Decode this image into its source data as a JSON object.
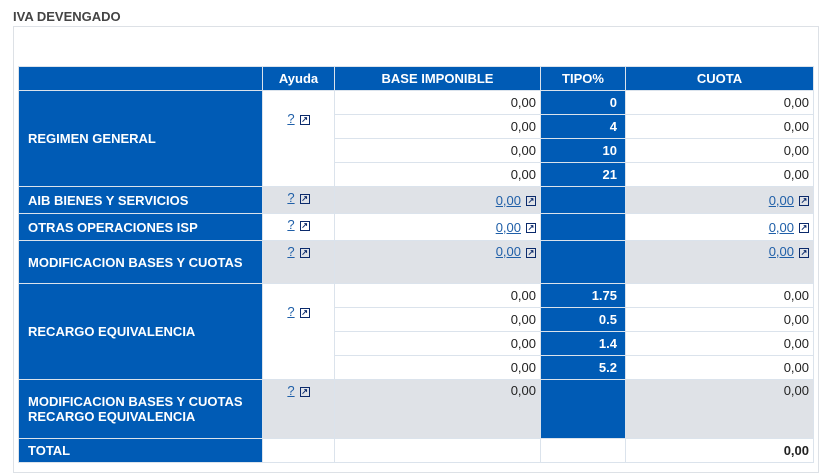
{
  "title": "IVA DEVENGADO",
  "headers": [
    "",
    "Ayuda",
    "BASE IMPONIBLE",
    "TIPO%",
    "CUOTA"
  ],
  "help": "?",
  "regimen": {
    "label": "REGIMEN GENERAL",
    "rows": [
      {
        "base": "0,00",
        "tipo": "0",
        "cuota": "0,00"
      },
      {
        "base": "0,00",
        "tipo": "4",
        "cuota": "0,00"
      },
      {
        "base": "0,00",
        "tipo": "10",
        "cuota": "0,00"
      },
      {
        "base": "0,00",
        "tipo": "21",
        "cuota": "0,00"
      }
    ]
  },
  "aib": {
    "label": "AIB BIENES Y SERVICIOS",
    "base": "0,00",
    "cuota": "0,00"
  },
  "otras": {
    "label": "OTRAS OPERACIONES ISP",
    "base": "0,00",
    "cuota": "0,00"
  },
  "modif": {
    "label": "MODIFICACION BASES Y CUOTAS",
    "base": "0,00",
    "cuota": "0,00"
  },
  "recargo": {
    "label": "RECARGO EQUIVALENCIA",
    "rows": [
      {
        "base": "0,00",
        "tipo": "1.75",
        "cuota": "0,00"
      },
      {
        "base": "0,00",
        "tipo": "0.5",
        "cuota": "0,00"
      },
      {
        "base": "0,00",
        "tipo": "1.4",
        "cuota": "0,00"
      },
      {
        "base": "0,00",
        "tipo": "5.2",
        "cuota": "0,00"
      }
    ]
  },
  "modif_recargo": {
    "label": "MODIFICACION BASES Y CUOTAS RECARGO EQUIVALENCIA",
    "base": "0,00",
    "cuota": "0,00"
  },
  "total": {
    "label": "TOTAL",
    "cuota": "0,00"
  }
}
